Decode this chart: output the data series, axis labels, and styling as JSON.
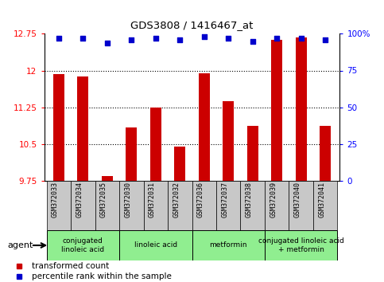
{
  "title": "GDS3808 / 1416467_at",
  "categories": [
    "GSM372033",
    "GSM372034",
    "GSM372035",
    "GSM372030",
    "GSM372031",
    "GSM372032",
    "GSM372036",
    "GSM372037",
    "GSM372038",
    "GSM372039",
    "GSM372040",
    "GSM372041"
  ],
  "bar_values": [
    11.92,
    11.87,
    9.84,
    10.83,
    11.24,
    10.45,
    11.95,
    11.37,
    10.87,
    12.62,
    12.68,
    10.87
  ],
  "scatter_pct": [
    97,
    97,
    94,
    96,
    97,
    96,
    98,
    97,
    95,
    97,
    97,
    96
  ],
  "bar_color": "#cc0000",
  "scatter_color": "#0000cc",
  "ylim_left": [
    9.75,
    12.75
  ],
  "ylim_right": [
    0,
    100
  ],
  "yticks_left": [
    9.75,
    10.5,
    11.25,
    12.0,
    12.75
  ],
  "ytick_labels_left": [
    "9.75",
    "10.5",
    "11.25",
    "12",
    "12.75"
  ],
  "yticks_right": [
    0,
    25,
    50,
    75,
    100
  ],
  "ytick_labels_right": [
    "0",
    "25",
    "50",
    "75",
    "100%"
  ],
  "hlines": [
    10.5,
    11.25,
    12.0
  ],
  "groups": [
    {
      "label": "conjugated\nlinoleic acid",
      "start": 0,
      "end": 3,
      "color": "#90ee90"
    },
    {
      "label": "linoleic acid",
      "start": 3,
      "end": 6,
      "color": "#90ee90"
    },
    {
      "label": "metformin",
      "start": 6,
      "end": 9,
      "color": "#90ee90"
    },
    {
      "label": "conjugated linoleic acid\n+ metformin",
      "start": 9,
      "end": 12,
      "color": "#90ee90"
    }
  ],
  "legend_items": [
    {
      "label": "transformed count",
      "color": "#cc0000"
    },
    {
      "label": "percentile rank within the sample",
      "color": "#0000cc"
    }
  ],
  "agent_label": "agent",
  "bar_width": 0.45,
  "tick_bg_color": "#c8c8c8"
}
